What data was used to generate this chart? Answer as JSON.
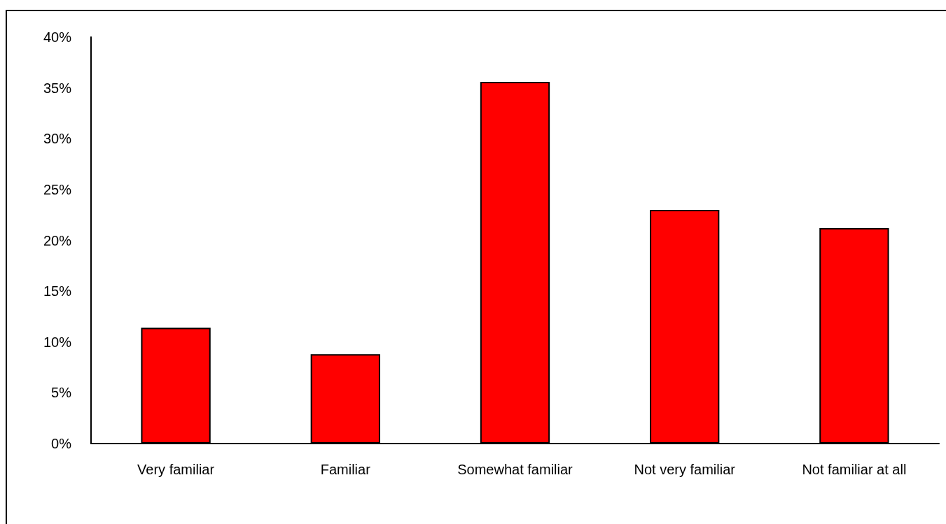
{
  "chart_data": {
    "type": "bar",
    "categories": [
      "Very familiar",
      "Familiar",
      "Somewhat familiar",
      "Not very familiar",
      "Not familiar at all"
    ],
    "values": [
      11.4,
      8.8,
      35.6,
      23.0,
      21.2
    ],
    "color": "#ff0000",
    "ylim": [
      0,
      40
    ],
    "yticks": [
      {
        "value": 0,
        "label": "0%"
      },
      {
        "value": 5,
        "label": "5%"
      },
      {
        "value": 10,
        "label": "10%"
      },
      {
        "value": 15,
        "label": "15%"
      },
      {
        "value": 20,
        "label": "20%"
      },
      {
        "value": 25,
        "label": "25%"
      },
      {
        "value": 30,
        "label": "30%"
      },
      {
        "value": 35,
        "label": "35%"
      },
      {
        "value": 40,
        "label": "40%"
      }
    ],
    "grid": false
  }
}
